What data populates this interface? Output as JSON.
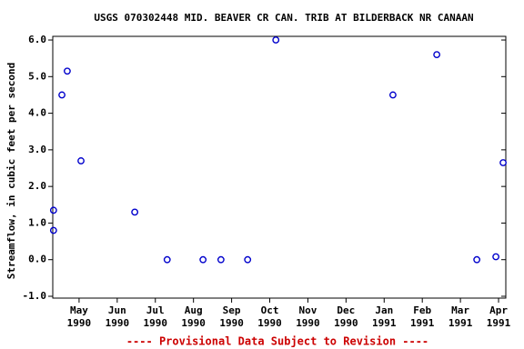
{
  "chart_data": {
    "type": "scatter",
    "title": "USGS 070302448 MID. BEAVER CR CAN. TRIB AT BILDERBACK NR CANAAN",
    "y_label": "Streamflow, in cubic feet per second",
    "footer": "---- Provisional Data Subject to Revision ----",
    "color": "#0000cc",
    "xlim": [
      -0.69,
      11.19
    ],
    "xticks": [
      {
        "value": 0,
        "label": "May",
        "year": "1990"
      },
      {
        "value": 1,
        "label": "Jun",
        "year": "1990"
      },
      {
        "value": 2,
        "label": "Jul",
        "year": "1990"
      },
      {
        "value": 3,
        "label": "Aug",
        "year": "1990"
      },
      {
        "value": 4,
        "label": "Sep",
        "year": "1990"
      },
      {
        "value": 5,
        "label": "Oct",
        "year": "1990"
      },
      {
        "value": 6,
        "label": "Nov",
        "year": "1990"
      },
      {
        "value": 7,
        "label": "Dec",
        "year": "1990"
      },
      {
        "value": 8,
        "label": "Jan",
        "year": "1991"
      },
      {
        "value": 9,
        "label": "Feb",
        "year": "1991"
      },
      {
        "value": 10,
        "label": "Mar",
        "year": "1991"
      },
      {
        "value": 11,
        "label": "Apr",
        "year": "1991"
      }
    ],
    "ylim": [
      -1.05,
      6.1
    ],
    "yticks": [
      {
        "value": -1,
        "label": "-1.0"
      },
      {
        "value": 0,
        "label": "0.0"
      },
      {
        "value": 1,
        "label": "1.0"
      },
      {
        "value": 2,
        "label": "2.0"
      },
      {
        "value": 3,
        "label": "3.0"
      },
      {
        "value": 4,
        "label": "4.0"
      },
      {
        "value": 5,
        "label": "5.0"
      },
      {
        "value": 6,
        "label": "6.0"
      }
    ],
    "x": [
      -0.67,
      -0.67,
      -0.45,
      -0.31,
      0.05,
      1.46,
      2.31,
      3.25,
      3.72,
      4.42,
      5.16,
      8.23,
      9.38,
      10.43,
      10.93,
      11.12
    ],
    "values": [
      1.35,
      0.8,
      4.5,
      5.15,
      2.7,
      1.3,
      0,
      0,
      0,
      0,
      6.0,
      4.5,
      5.6,
      0,
      0.08,
      2.65
    ]
  }
}
